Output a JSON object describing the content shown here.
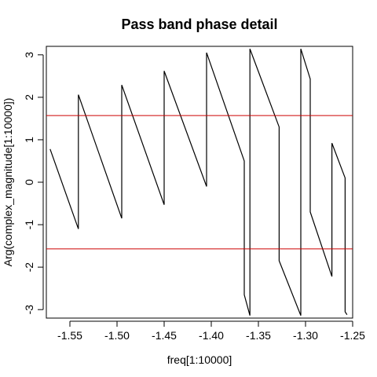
{
  "chart_data": {
    "type": "line",
    "title": "Pass band phase detail",
    "xlabel": "freq[1:10000]",
    "ylabel": "Arg(complex_magnitude[1:10000])",
    "xlim": [
      -1.575,
      -1.25
    ],
    "ylim": [
      -3.2,
      3.2
    ],
    "x_ticks": [
      -1.55,
      -1.5,
      -1.45,
      -1.4,
      -1.35,
      -1.3,
      -1.25
    ],
    "x_tick_labels": [
      "-1.55",
      "-1.50",
      "-1.45",
      "-1.40",
      "-1.35",
      "-1.30",
      "-1.25"
    ],
    "y_ticks": [
      -3,
      -2,
      -1,
      0,
      1,
      2,
      3
    ],
    "y_tick_labels": [
      "-3",
      "-2",
      "-1",
      "0",
      "1",
      "2",
      "3"
    ],
    "grid": false,
    "series": [
      {
        "color": "#000000",
        "points": [
          [
            -1.571,
            0.78
          ],
          [
            -1.541,
            -1.1
          ],
          [
            -1.541,
            2.06
          ],
          [
            -1.495,
            -0.85
          ],
          [
            -1.495,
            2.29
          ],
          [
            -1.45,
            -0.53
          ],
          [
            -1.45,
            2.62
          ],
          [
            -1.405,
            -0.1
          ],
          [
            -1.405,
            3.05
          ],
          [
            -1.365,
            0.5
          ],
          [
            -1.365,
            -2.65
          ],
          [
            -1.359,
            -3.14
          ],
          [
            -1.359,
            3.14
          ],
          [
            -1.328,
            1.3
          ],
          [
            -1.328,
            -1.85
          ],
          [
            -1.305,
            -3.14
          ],
          [
            -1.305,
            3.14
          ],
          [
            -1.295,
            2.43
          ],
          [
            -1.295,
            -0.7
          ],
          [
            -1.272,
            -2.22
          ],
          [
            -1.272,
            0.92
          ],
          [
            -1.258,
            0.1
          ],
          [
            -1.258,
            -3.05
          ],
          [
            -1.256,
            -3.12
          ]
        ]
      },
      {
        "color": "#cc0000",
        "points": [
          [
            -1.575,
            1.5708
          ],
          [
            -1.25,
            1.5708
          ]
        ]
      },
      {
        "color": "#cc0000",
        "points": [
          [
            -1.575,
            -1.5708
          ],
          [
            -1.25,
            -1.5708
          ]
        ]
      }
    ]
  }
}
